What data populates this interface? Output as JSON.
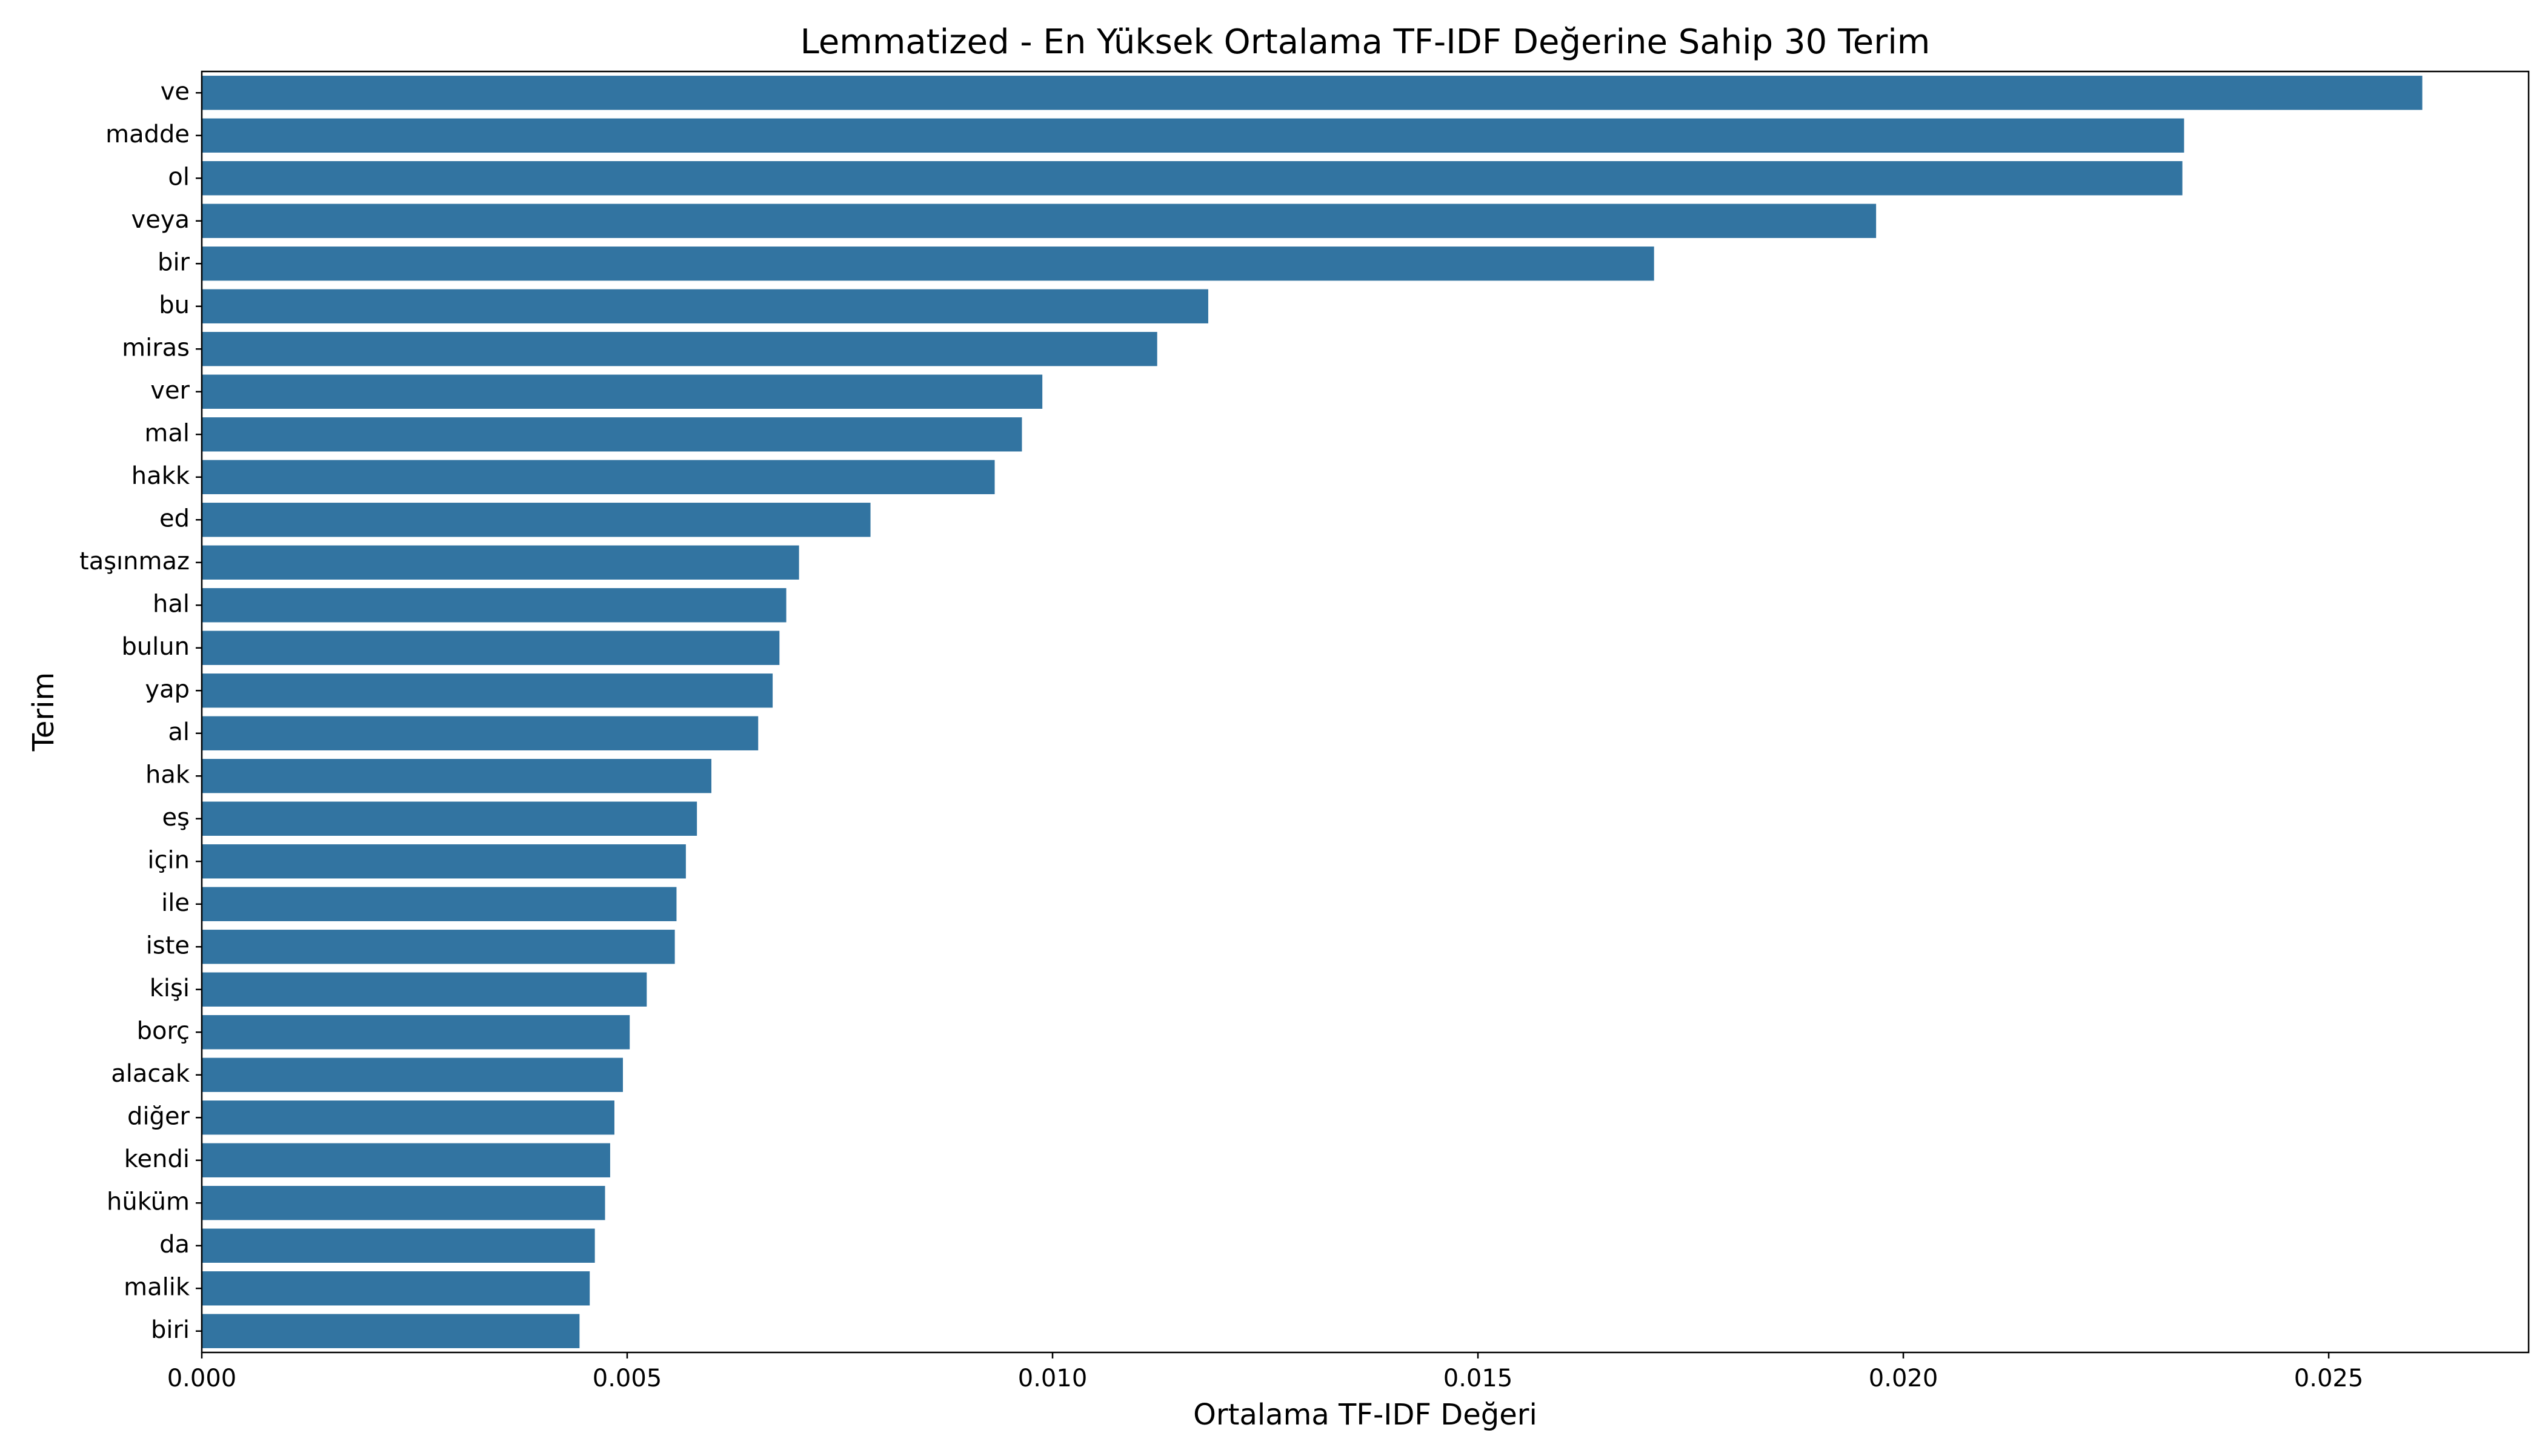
{
  "chart_data": {
    "type": "bar",
    "orientation": "horizontal",
    "title": "Lemmatized - En Yüksek Ortalama TF-IDF Değerine Sahip 30 Terim",
    "xlabel": "Ortalama TF-IDF Değeri",
    "ylabel": "Terim",
    "xlim": [
      0,
      0.02735
    ],
    "xticks": [
      0.0,
      0.005,
      0.01,
      0.015,
      0.02,
      0.025
    ],
    "xtick_labels": [
      "0.000",
      "0.005",
      "0.010",
      "0.015",
      "0.020",
      "0.025"
    ],
    "grid": false,
    "bar_color": "#3274a1",
    "categories": [
      "ve",
      "madde",
      "ol",
      "veya",
      "bir",
      "bu",
      "miras",
      "ver",
      "mal",
      "hakk",
      "ed",
      "taşınmaz",
      "hal",
      "bulun",
      "yap",
      "al",
      "hak",
      "eş",
      "için",
      "ile",
      "iste",
      "kişi",
      "borç",
      "alacak",
      "diğer",
      "kendi",
      "hüküm",
      "da",
      "malik",
      "biri"
    ],
    "values": [
      0.0261,
      0.0233,
      0.02328,
      0.01968,
      0.01707,
      0.01183,
      0.01123,
      0.00988,
      0.00964,
      0.00932,
      0.00786,
      0.00702,
      0.00687,
      0.00679,
      0.00671,
      0.00654,
      0.00599,
      0.00582,
      0.00569,
      0.00558,
      0.00556,
      0.00523,
      0.00503,
      0.00495,
      0.00485,
      0.0048,
      0.00474,
      0.00462,
      0.00456,
      0.00444
    ]
  }
}
